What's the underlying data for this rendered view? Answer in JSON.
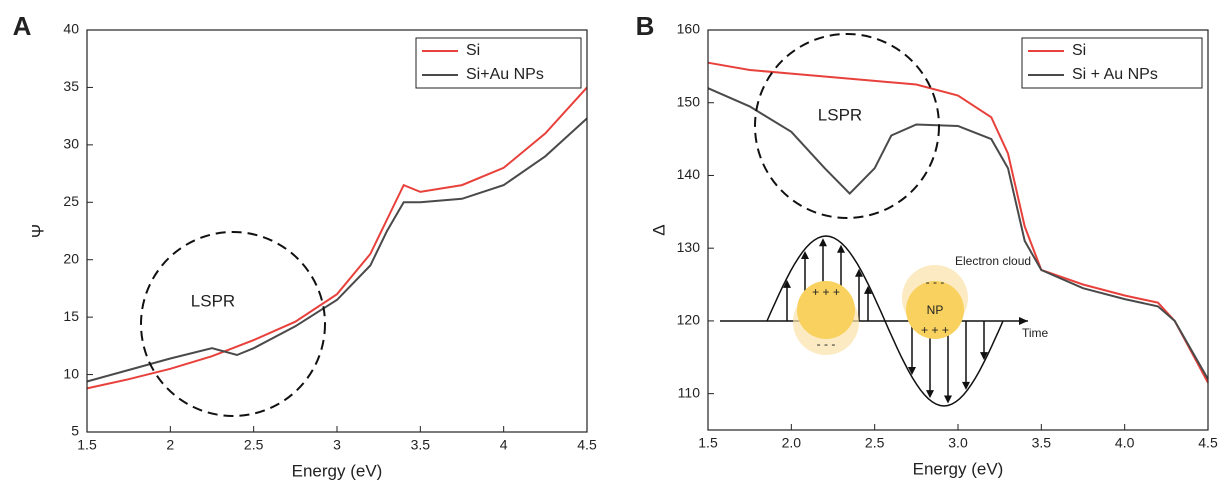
{
  "chart_data": [
    {
      "type": "line",
      "panel_label": "A",
      "xlabel": "Energy (eV)",
      "ylabel": "Ψ",
      "xlim": [
        1.5,
        4.5
      ],
      "xticks": [
        1.5,
        2,
        2.5,
        3,
        3.5,
        4,
        4.5
      ],
      "ylim": [
        5,
        40
      ],
      "yticks": [
        5,
        10,
        15,
        20,
        25,
        30,
        35,
        40
      ],
      "legend": "upper right",
      "annotations": [
        "LSPR"
      ],
      "series": [
        {
          "name": "Si",
          "color": "#e8413c",
          "x": [
            1.5,
            1.75,
            2.0,
            2.25,
            2.5,
            2.75,
            3.0,
            3.2,
            3.3,
            3.4,
            3.5,
            3.75,
            4.0,
            4.25,
            4.5
          ],
          "values": [
            8.8,
            9.6,
            10.5,
            11.6,
            13.0,
            14.6,
            17.0,
            20.5,
            23.5,
            26.5,
            25.9,
            26.5,
            28.0,
            31.0,
            35.0
          ]
        },
        {
          "name": "Si+Au NPs",
          "color": "#4a4a4a",
          "x": [
            1.5,
            1.75,
            2.0,
            2.25,
            2.4,
            2.5,
            2.75,
            3.0,
            3.2,
            3.3,
            3.4,
            3.5,
            3.75,
            4.0,
            4.25,
            4.5
          ],
          "values": [
            9.4,
            10.4,
            11.4,
            12.3,
            11.7,
            12.3,
            14.2,
            16.5,
            19.5,
            22.5,
            25.0,
            25.0,
            25.3,
            26.5,
            29.0,
            32.3
          ]
        }
      ]
    },
    {
      "type": "line",
      "panel_label": "B",
      "xlabel": "Energy (eV)",
      "ylabel": "Δ",
      "xlim": [
        1.5,
        4.5
      ],
      "xticks": [
        1.5,
        {
          "value": 2,
          "label": "2.0"
        },
        2.5,
        {
          "value": 3,
          "label": "3.0"
        },
        3.5,
        {
          "value": 4,
          "label": "4.0"
        },
        4.5
      ],
      "ylim": [
        105,
        160
      ],
      "yticks": [
        110,
        120,
        130,
        140,
        150,
        160
      ],
      "legend": "upper right",
      "annotations": [
        "LSPR",
        "Electron cloud",
        "NP",
        "+ + +",
        "- - -",
        "+ + +",
        "- - -",
        "Time"
      ],
      "series": [
        {
          "name": "Si",
          "color": "#e8413c",
          "x": [
            1.5,
            1.75,
            2.0,
            2.5,
            2.75,
            3.0,
            3.2,
            3.3,
            3.4,
            3.5,
            3.75,
            4.0,
            4.2,
            4.3,
            4.5
          ],
          "values": [
            155.5,
            154.5,
            154,
            153,
            152.5,
            151,
            148,
            143,
            133,
            127,
            125,
            123.5,
            122.5,
            120,
            111.5
          ]
        },
        {
          "name": "Si + Au NPs",
          "color": "#4a4a4a",
          "x": [
            1.5,
            1.75,
            2.0,
            2.2,
            2.35,
            2.5,
            2.6,
            2.75,
            3.0,
            3.2,
            3.3,
            3.4,
            3.5,
            3.75,
            4.0,
            4.2,
            4.3,
            4.5
          ],
          "values": [
            152,
            149.5,
            146,
            141,
            137.5,
            141,
            145.5,
            147,
            146.8,
            145,
            141,
            131,
            127,
            124.5,
            123,
            122,
            120,
            112
          ]
        }
      ]
    }
  ]
}
